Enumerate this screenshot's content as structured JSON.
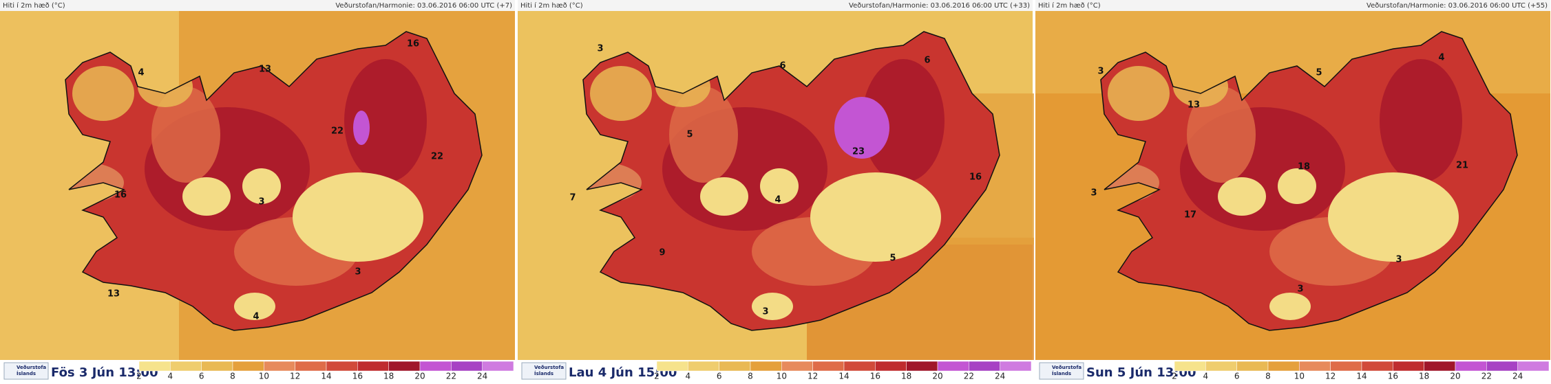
{
  "panels": [
    {
      "header_left": "Hiti í 2m hæð (°C)",
      "header_right": "Veðurstofan/Harmonie: 03.06.2016 06:00 UTC (+7)",
      "date": "Fös 3 Jún 13:00",
      "contour_labels": [
        4,
        13,
        16,
        22,
        22,
        16,
        3,
        13,
        3,
        4
      ]
    },
    {
      "header_left": "Hiti í 2m hæð (°C)",
      "header_right": "Veðurstofan/Harmonie: 03.06.2016 06:00 UTC (+33)",
      "date": "Lau 4 Jún 15:00",
      "contour_labels": [
        3,
        6,
        6,
        5,
        23,
        16,
        7,
        4,
        9,
        3,
        5
      ]
    },
    {
      "header_left": "Hiti í 2m hæð (°C)",
      "header_right": "Veðurstofan/Harmonie: 03.06.2016 06:00 UTC (+55)",
      "date": "Sun 5 Jún 13:00",
      "contour_labels": [
        3,
        4,
        5,
        13,
        18,
        21,
        3,
        17,
        3,
        3
      ]
    }
  ],
  "logo": [
    "Veðurstofa",
    "Íslands"
  ],
  "legend": {
    "labels": [
      2,
      4,
      6,
      8,
      10,
      12,
      14,
      16,
      18,
      20,
      22,
      24
    ],
    "colors": [
      "#f6e38c",
      "#efcd6e",
      "#e9b954",
      "#e5a03c",
      "#e78a5c",
      "#df6c48",
      "#d14a3a",
      "#bf2c2f",
      "#a0162a",
      "#c355d3",
      "#a742c4",
      "#cf7be0"
    ]
  }
}
